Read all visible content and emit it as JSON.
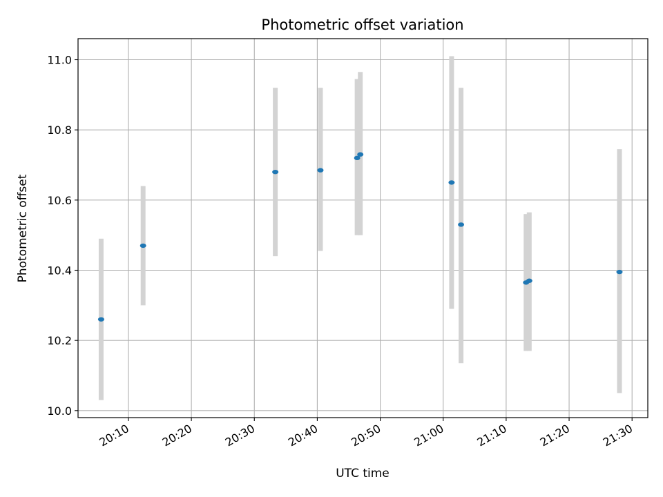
{
  "chart_data": {
    "type": "scatter",
    "title": "Photometric offset variation",
    "xlabel": "UTC time",
    "ylabel": "Photometric offset",
    "xlim": [
      "20:02:00",
      "21:32:30"
    ],
    "ylim": [
      9.98,
      11.06
    ],
    "x_ticks": [
      "20:10",
      "20:20",
      "20:30",
      "20:40",
      "20:50",
      "21:00",
      "21:10",
      "21:20",
      "21:30"
    ],
    "y_ticks": [
      "10.0",
      "10.2",
      "10.4",
      "10.6",
      "10.8",
      "11.0"
    ],
    "grid": true,
    "colors": {
      "point": "#1f77b4",
      "errorbar": "#d3d3d3",
      "grid": "#b0b0b0",
      "axes": "#000000"
    },
    "points": [
      {
        "x": "20:05:40",
        "y": 10.26,
        "y_low": 10.03,
        "y_high": 10.49
      },
      {
        "x": "20:12:20",
        "y": 10.47,
        "y_low": 10.3,
        "y_high": 10.64
      },
      {
        "x": "20:33:20",
        "y": 10.68,
        "y_low": 10.44,
        "y_high": 10.92
      },
      {
        "x": "20:40:30",
        "y": 10.685,
        "y_low": 10.455,
        "y_high": 10.92
      },
      {
        "x": "20:46:20",
        "y": 10.72,
        "y_low": 10.5,
        "y_high": 10.945
      },
      {
        "x": "20:46:50",
        "y": 10.73,
        "y_low": 10.5,
        "y_high": 10.965
      },
      {
        "x": "21:01:20",
        "y": 10.65,
        "y_low": 10.29,
        "y_high": 11.01
      },
      {
        "x": "21:02:50",
        "y": 10.53,
        "y_low": 10.135,
        "y_high": 10.92
      },
      {
        "x": "21:13:10",
        "y": 10.365,
        "y_low": 10.17,
        "y_high": 10.56
      },
      {
        "x": "21:13:40",
        "y": 10.37,
        "y_low": 10.17,
        "y_high": 10.565
      },
      {
        "x": "21:28:00",
        "y": 10.395,
        "y_low": 10.05,
        "y_high": 10.745
      }
    ]
  }
}
